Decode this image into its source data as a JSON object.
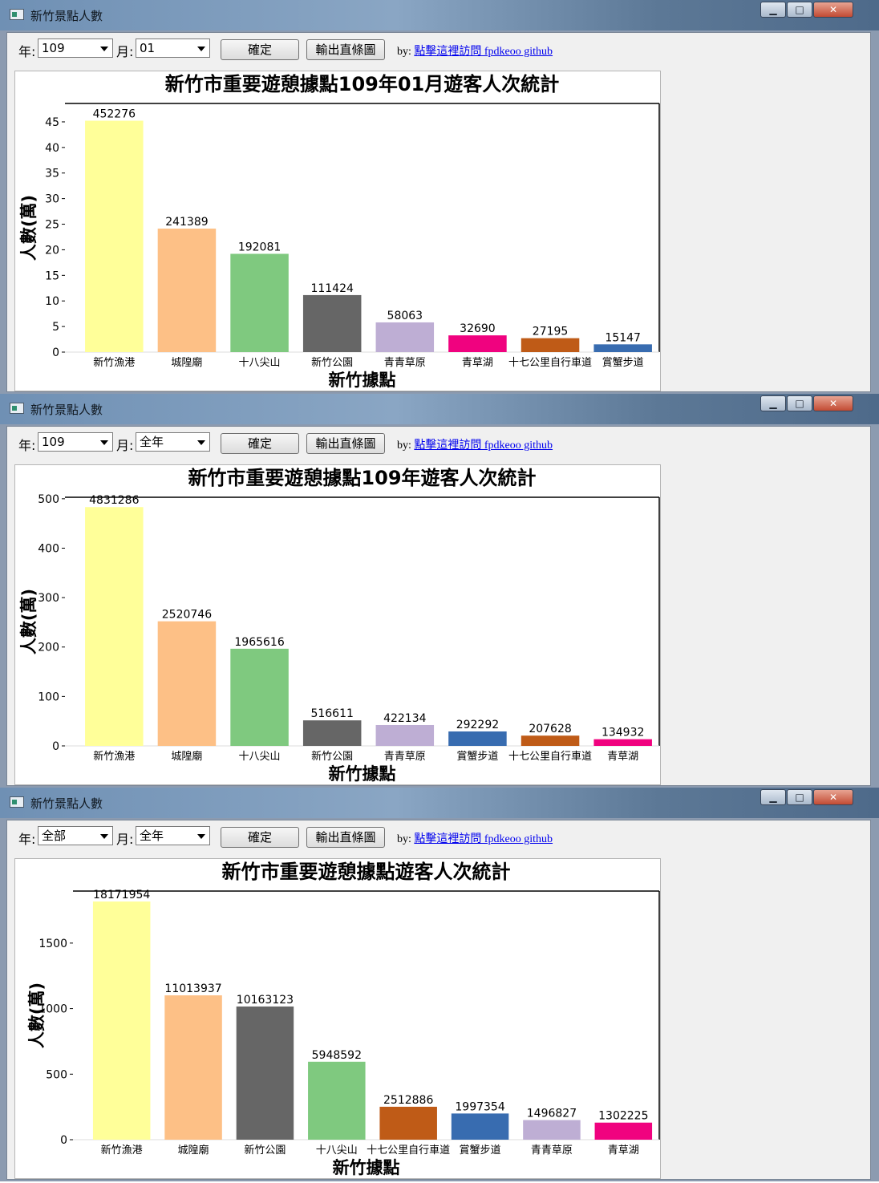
{
  "windows": [
    {
      "title": "新竹景點人數",
      "year_label": "年:",
      "year_value": "109",
      "month_label": "月:",
      "month_value": "01",
      "confirm_button": "確定",
      "export_button": "輸出直條圖",
      "credit_prefix": "by:",
      "credit_link": "點擊這裡訪問 fpdkeoo github",
      "chart_data": {
        "type": "bar",
        "title": "新竹市重要遊憩據點109年01月遊客人次統計",
        "xlabel": "新竹據點",
        "ylabel": "人數(萬)",
        "categories": [
          "新竹漁港",
          "城隍廟",
          "十八尖山",
          "新竹公園",
          "青青草原",
          "青草湖",
          "十七公里自行車道",
          "賞蟹步道"
        ],
        "values": [
          452276,
          241389,
          192081,
          111424,
          58063,
          32690,
          27195,
          15147
        ],
        "value_labels": [
          "452276",
          "241389",
          "192081",
          "111424",
          "58063",
          "32690",
          "27195",
          "15147"
        ],
        "colors": [
          "#ffff99",
          "#fdc086",
          "#7fc97f",
          "#666666",
          "#beaed4",
          "#f0027f",
          "#bf5b17",
          "#386cb0"
        ],
        "yticks": [
          0,
          5,
          10,
          15,
          20,
          25,
          30,
          35,
          40,
          45
        ],
        "ylim": [
          0,
          48.6
        ]
      }
    },
    {
      "title": "新竹景點人數",
      "year_label": "年:",
      "year_value": "109",
      "month_label": "月:",
      "month_value": "全年",
      "confirm_button": "確定",
      "export_button": "輸出直條圖",
      "credit_prefix": "by:",
      "credit_link": "點擊這裡訪問 fpdkeoo github",
      "chart_data": {
        "type": "bar",
        "title": "新竹市重要遊憩據點109年遊客人次統計",
        "xlabel": "新竹據點",
        "ylabel": "人數(萬)",
        "categories": [
          "新竹漁港",
          "城隍廟",
          "十八尖山",
          "新竹公園",
          "青青草原",
          "賞蟹步道",
          "十七公里自行車道",
          "青草湖"
        ],
        "values": [
          4831286,
          2520746,
          1965616,
          516611,
          422134,
          292292,
          207628,
          134932
        ],
        "value_labels": [
          "4831286",
          "2520746",
          "1965616",
          "516611",
          "422134",
          "292292",
          "207628",
          "134932"
        ],
        "colors": [
          "#ffff99",
          "#fdc086",
          "#7fc97f",
          "#666666",
          "#beaed4",
          "#386cb0",
          "#bf5b17",
          "#f0027f"
        ],
        "yticks": [
          0,
          100,
          200,
          300,
          400,
          500
        ],
        "ylim": [
          0,
          503
        ]
      }
    },
    {
      "title": "新竹景點人數",
      "year_label": "年:",
      "year_value": "全部",
      "month_label": "月:",
      "month_value": "全年",
      "confirm_button": "確定",
      "export_button": "輸出直條圖",
      "credit_prefix": "by:",
      "credit_link": "點擊這裡訪問 fpdkeoo github",
      "chart_data": {
        "type": "bar",
        "title": "新竹市重要遊憩據點遊客人次統計",
        "xlabel": "新竹據點",
        "ylabel": "人數(萬)",
        "categories": [
          "新竹漁港",
          "城隍廟",
          "新竹公園",
          "十八尖山",
          "十七公里自行車道",
          "賞蟹步道",
          "青青草原",
          "青草湖"
        ],
        "values": [
          18171954,
          11013937,
          10163123,
          5948592,
          2512886,
          1997354,
          1496827,
          1302225
        ],
        "value_labels": [
          "18171954",
          "11013937",
          "10163123",
          "5948592",
          "2512886",
          "1997354",
          "1496827",
          "1302225"
        ],
        "colors": [
          "#ffff99",
          "#fdc086",
          "#666666",
          "#7fc97f",
          "#bf5b17",
          "#386cb0",
          "#beaed4",
          "#f0027f"
        ],
        "yticks": [
          0,
          500,
          1000,
          1500
        ],
        "ylim": [
          0,
          1897
        ]
      }
    }
  ]
}
